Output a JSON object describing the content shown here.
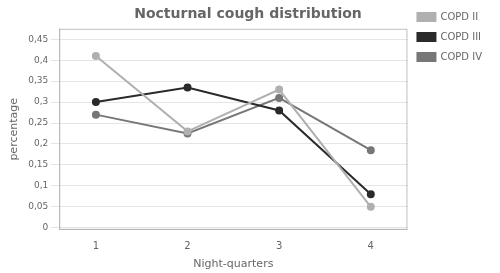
{
  "chart_data": {
    "type": "line",
    "title": "Nocturnal cough distribution",
    "xlabel": "Night-quarters",
    "ylabel": "percentage",
    "x": [
      1,
      2,
      3,
      4
    ],
    "series": [
      {
        "name": "COPD II",
        "color": "#b0b0b0",
        "marker": "circle",
        "values": [
          0.41,
          0.23,
          0.33,
          0.05
        ]
      },
      {
        "name": "COPD III",
        "color": "#2a2a2a",
        "marker": "circle",
        "values": [
          0.3,
          0.335,
          0.28,
          0.08
        ]
      },
      {
        "name": "COPD IV",
        "color": "#777777",
        "marker": "circle",
        "values": [
          0.27,
          0.225,
          0.31,
          0.185
        ]
      }
    ],
    "xlim": [
      0.6,
      4.4
    ],
    "xticks": [
      1,
      2,
      3,
      4
    ],
    "ylim": [
      -0.005,
      0.475
    ],
    "yticks": [
      0,
      {
        "value": 0.05,
        "label": "0,05"
      },
      {
        "value": 0.1,
        "label": "0,1"
      },
      {
        "value": 0.15,
        "label": "0,15"
      },
      {
        "value": 0.2,
        "label": "0,2"
      },
      {
        "value": 0.25,
        "label": "0,25"
      },
      {
        "value": 0.3,
        "label": "0,3"
      },
      {
        "value": 0.35,
        "label": "0,35"
      },
      {
        "value": 0.4,
        "label": "0,4"
      },
      {
        "value": 0.45,
        "label": "0,45"
      }
    ],
    "grid": "y",
    "legend": "upper right"
  }
}
